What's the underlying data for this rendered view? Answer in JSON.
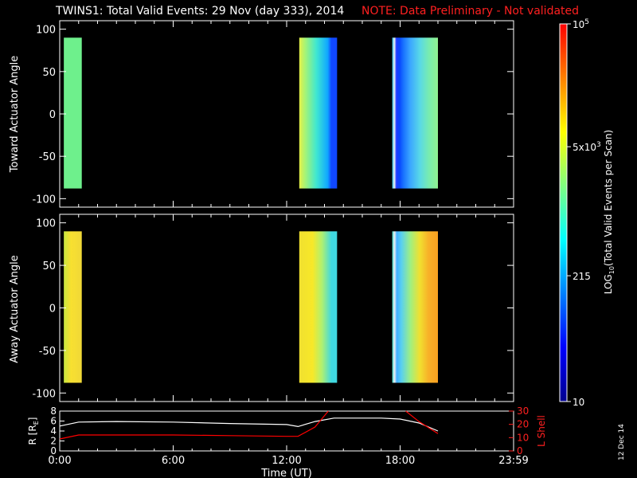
{
  "header": {
    "title": "TWINS1: Total Valid Events: 29 Nov (day 333), 2014",
    "note": "NOTE: Data Preliminary - Not validated"
  },
  "side_label": "12 Dec 14",
  "colorbar": {
    "label_prefix": "LOG",
    "label_sub": "10",
    "label_suffix": "(Total Valid Events per Scan)",
    "ticks": [
      {
        "text": "10",
        "value": 10
      },
      {
        "text": "215",
        "value": 215
      },
      {
        "text": "5x10",
        "sup": "3",
        "value": 5000
      },
      {
        "text": "10",
        "sup": "5",
        "value": 100000
      }
    ],
    "min": 10,
    "max": 100000,
    "scale": "log",
    "colors": [
      "#00008f",
      "#0000ff",
      "#0080ff",
      "#00ffff",
      "#80ff80",
      "#ffff00",
      "#ff8000",
      "#ff0000"
    ]
  },
  "chart_data": [
    {
      "type": "heatmap",
      "panel": "toward",
      "ylabel": "Toward Actuator Angle",
      "ylim": [
        -110,
        110
      ],
      "yticks": [
        100,
        50,
        0,
        -50,
        -100
      ],
      "xlim_hours": [
        0,
        24
      ],
      "angle_range": [
        -88,
        90
      ],
      "blocks": [
        {
          "start": "00:13",
          "end": "01:10",
          "profile": [
            {
              "at": 0.0,
              "color": "#6ef08c"
            },
            {
              "at": 1.0,
              "color": "#6ef08c"
            }
          ]
        },
        {
          "start": "12:40",
          "end": "14:40",
          "profile": [
            {
              "at": 0.0,
              "color": "#e6f048"
            },
            {
              "at": 0.15,
              "color": "#a8f474"
            },
            {
              "at": 0.45,
              "color": "#40e8d0"
            },
            {
              "at": 0.75,
              "color": "#10a8ff"
            },
            {
              "at": 0.85,
              "color": "#1048ff"
            },
            {
              "at": 1.0,
              "color": "#1048ff"
            }
          ]
        },
        {
          "start": "17:35",
          "end": "20:00",
          "profile": [
            {
              "at": 0.0,
              "color": "#30c8f0"
            },
            {
              "at": 0.05,
              "color": "#f0f0f0"
            },
            {
              "at": 0.09,
              "color": "#203cff"
            },
            {
              "at": 0.16,
              "color": "#0848ff"
            },
            {
              "at": 0.24,
              "color": "#1870ff"
            },
            {
              "at": 0.4,
              "color": "#3ca8ff"
            },
            {
              "at": 0.6,
              "color": "#58d8e8"
            },
            {
              "at": 0.8,
              "color": "#78ecb0"
            },
            {
              "at": 1.0,
              "color": "#90f090"
            }
          ]
        }
      ]
    },
    {
      "type": "heatmap",
      "panel": "away",
      "ylabel": "Away Actuator Angle",
      "ylim": [
        -110,
        110
      ],
      "yticks": [
        100,
        50,
        0,
        -50,
        -100
      ],
      "xlim_hours": [
        0,
        24
      ],
      "angle_range": [
        -88,
        90
      ],
      "blocks": [
        {
          "start": "00:13",
          "end": "01:10",
          "profile": [
            {
              "at": 0.0,
              "color": "#c8e840"
            },
            {
              "at": 0.4,
              "color": "#f8e030"
            },
            {
              "at": 1.0,
              "color": "#f0d838"
            }
          ]
        },
        {
          "start": "12:40",
          "end": "14:40",
          "profile": [
            {
              "at": 0.0,
              "color": "#f0e030"
            },
            {
              "at": 0.35,
              "color": "#f8e828"
            },
            {
              "at": 0.6,
              "color": "#b0f070"
            },
            {
              "at": 0.85,
              "color": "#40d8e0"
            },
            {
              "at": 1.0,
              "color": "#40d8e0"
            }
          ]
        },
        {
          "start": "17:35",
          "end": "20:00",
          "profile": [
            {
              "at": 0.0,
              "color": "#40e0d0"
            },
            {
              "at": 0.05,
              "color": "#f0f0f0"
            },
            {
              "at": 0.1,
              "color": "#40b0ff"
            },
            {
              "at": 0.2,
              "color": "#58d0f0"
            },
            {
              "at": 0.4,
              "color": "#a0f080"
            },
            {
              "at": 0.6,
              "color": "#f0e030"
            },
            {
              "at": 0.8,
              "color": "#f8b028"
            },
            {
              "at": 1.0,
              "color": "#f8a020"
            }
          ]
        }
      ]
    },
    {
      "type": "line",
      "panel": "ephemeris",
      "ylabel_left": "R [R",
      "ylabel_left_sub": "E",
      "ylabel_left_end": "]",
      "ylabel_right": "L Shell",
      "xlabel": "Time (UT)",
      "xticks": [
        "0:00",
        "6:00",
        "12:00",
        "18:00",
        "23:59"
      ],
      "xtick_hours": [
        0,
        6,
        12,
        18,
        24
      ],
      "ylim_left": [
        0,
        8
      ],
      "yticks_left": [
        8,
        6,
        4,
        2,
        0
      ],
      "ylim_right": [
        0,
        30
      ],
      "yticks_right": [
        30,
        20,
        10,
        0
      ],
      "series": [
        {
          "axis": "left",
          "color": "#ffffff",
          "points": [
            [
              0.0,
              5.0
            ],
            [
              1.0,
              5.8
            ],
            [
              3.0,
              5.9
            ],
            [
              6.0,
              5.8
            ],
            [
              9.0,
              5.5
            ],
            [
              12.0,
              5.3
            ],
            [
              12.6,
              4.9
            ],
            [
              13.5,
              5.9
            ],
            [
              14.5,
              6.6
            ],
            [
              17.0,
              6.6
            ],
            [
              18.0,
              6.4
            ],
            [
              19.0,
              5.6
            ],
            [
              20.0,
              4.0
            ]
          ]
        },
        {
          "axis": "right",
          "color": "#ff0000",
          "points": [
            [
              0.0,
              9.0
            ],
            [
              1.0,
              12.0
            ],
            [
              6.0,
              12.0
            ],
            [
              9.0,
              11.5
            ],
            [
              12.0,
              11.0
            ],
            [
              12.6,
              11.0
            ],
            [
              13.5,
              18.0
            ],
            [
              14.2,
              30.0
            ]
          ]
        },
        {
          "axis": "right",
          "color": "#ff0000",
          "points": [
            [
              18.3,
              30.0
            ],
            [
              19.0,
              22.0
            ],
            [
              20.0,
              13.0
            ]
          ]
        }
      ]
    }
  ]
}
